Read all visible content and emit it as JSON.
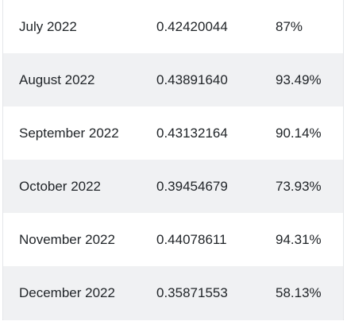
{
  "table": {
    "rows": [
      {
        "month": "July 2022",
        "value": "0.42420044",
        "percent": "87%"
      },
      {
        "month": "August 2022",
        "value": "0.43891640",
        "percent": "93.49%"
      },
      {
        "month": "September 2022",
        "value": "0.43132164",
        "percent": "90.14%"
      },
      {
        "month": "October 2022",
        "value": "0.39454679",
        "percent": "73.93%"
      },
      {
        "month": "November 2022",
        "value": "0.44078611",
        "percent": "94.31%"
      },
      {
        "month": "December 2022",
        "value": "0.35871553",
        "percent": "58.13%"
      }
    ]
  }
}
